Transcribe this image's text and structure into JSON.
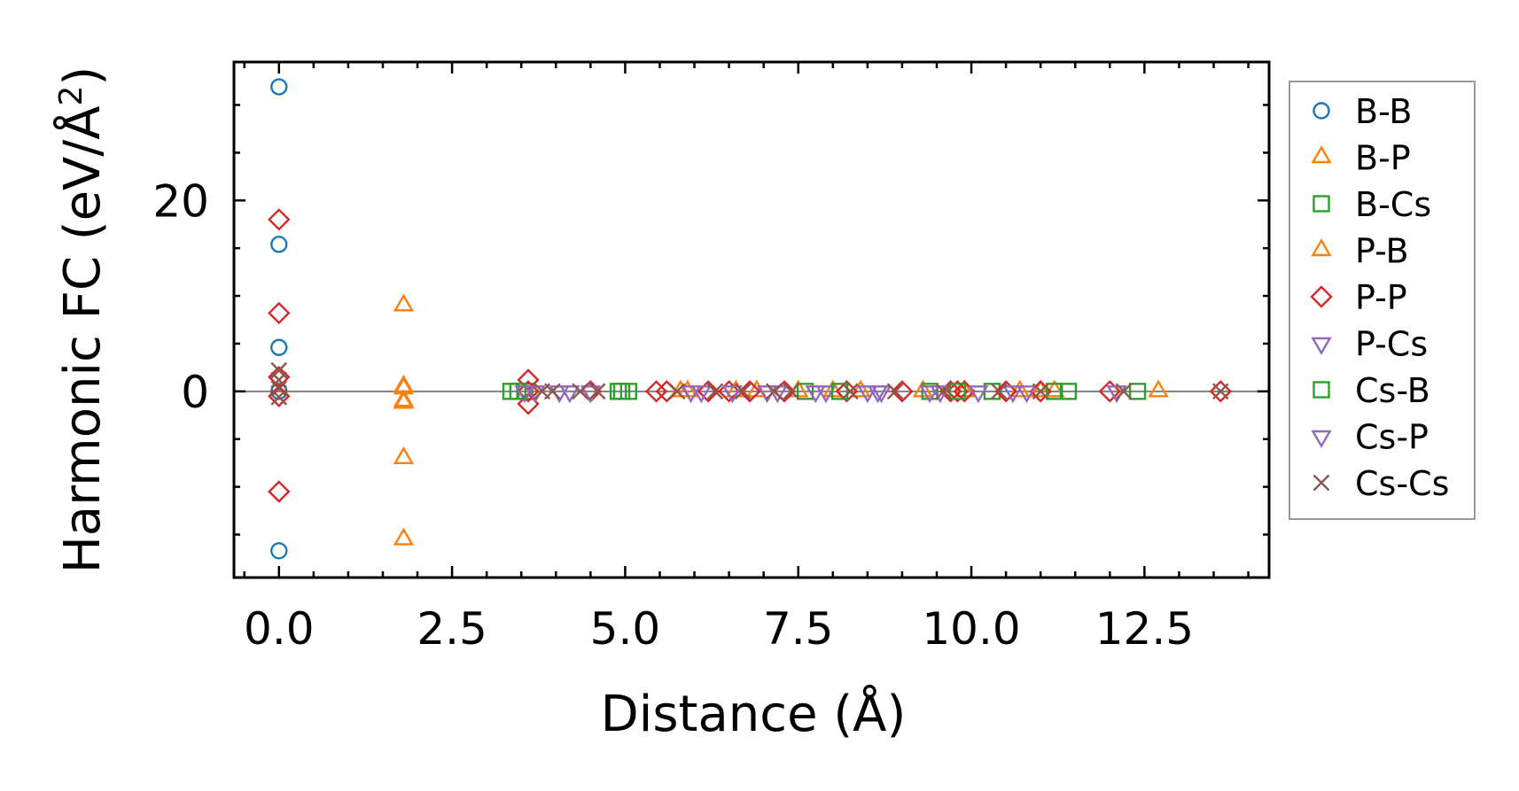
{
  "chart_data": {
    "type": "scatter",
    "title": "",
    "xlabel": "Distance (Å)",
    "ylabel_main": "Harmonic FC (eV/Å",
    "ylabel_sup": "2",
    "ylabel_close": ")",
    "xlim": [
      -0.65,
      14.3
    ],
    "ylim": [
      -19.5,
      34.5
    ],
    "xticks": [
      0,
      2.5,
      5,
      7.5,
      10,
      12.5
    ],
    "xtick_labels": [
      "0.0",
      "2.5",
      "5.0",
      "7.5",
      "10.0",
      "12.5"
    ],
    "yticks": [
      0,
      20
    ],
    "ytick_labels": [
      "0",
      "20"
    ],
    "legend_position": "right-outside",
    "zero_line": true,
    "series": [
      {
        "name": "B-B",
        "marker": "circle",
        "color": "#1f77b4",
        "x": [
          0,
          0,
          0,
          0,
          0
        ],
        "y": [
          31.9,
          15.4,
          4.6,
          0,
          -16.7
        ]
      },
      {
        "name": "B-P",
        "marker": "triangle-up",
        "color": "#ff7f0e",
        "x": [
          1.8,
          1.8,
          1.8,
          1.8,
          1.8,
          5.9,
          6.6,
          7.5,
          8.4,
          9.3,
          10.7,
          11.2,
          12.7
        ],
        "y": [
          9.0,
          0.3,
          -1.2,
          -7.0,
          -15.5,
          0,
          0,
          0,
          0,
          0,
          0,
          0,
          0
        ]
      },
      {
        "name": "B-Cs",
        "marker": "square",
        "color": "#2ca02c",
        "x": [
          3.35,
          3.55,
          4.95,
          5.05,
          7.6,
          9.4,
          10.3,
          11.4,
          12.4
        ],
        "y": [
          0,
          0,
          0,
          0,
          0,
          0,
          0,
          0,
          0
        ]
      },
      {
        "name": "P-B",
        "marker": "triangle-up",
        "color": "#ff7f0e",
        "x": [
          1.8,
          1.8,
          5.8,
          6.9,
          8.0,
          9.9,
          11.0
        ],
        "y": [
          0.5,
          -1.0,
          0,
          0,
          0,
          0,
          0
        ]
      },
      {
        "name": "P-P",
        "marker": "diamond",
        "color": "#d62728",
        "x": [
          0,
          0,
          0,
          0,
          0,
          3.6,
          3.6,
          3.6,
          4.5,
          5.45,
          5.6,
          6.2,
          6.5,
          6.8,
          7.3,
          8.2,
          9.0,
          9.7,
          9.8,
          9.9,
          10.5,
          11.0,
          12.0,
          13.6
        ],
        "y": [
          18.0,
          8.2,
          1.5,
          -0.5,
          -10.5,
          1.2,
          0,
          -1.3,
          0,
          0,
          0,
          0,
          0,
          0,
          0,
          0,
          0,
          0,
          0,
          0,
          0,
          0,
          0,
          0
        ]
      },
      {
        "name": "P-Cs",
        "marker": "triangle-down",
        "color": "#9467bd",
        "x": [
          3.55,
          4.05,
          4.5,
          6.1,
          6.55,
          7.2,
          7.9,
          8.5,
          8.7,
          9.4,
          10.1,
          10.8,
          12.1
        ],
        "y": [
          0,
          0,
          0,
          0,
          0,
          0,
          0,
          0,
          0,
          0,
          0,
          0,
          0
        ]
      },
      {
        "name": "Cs-B",
        "marker": "square",
        "color": "#2ca02c",
        "x": [
          3.45,
          4.9,
          8.1,
          9.8,
          11.2
        ],
        "y": [
          0,
          0,
          0,
          0,
          0
        ]
      },
      {
        "name": "Cs-P",
        "marker": "triangle-down",
        "color": "#9467bd",
        "x": [
          3.7,
          4.2,
          5.95,
          7.05,
          7.75,
          8.65,
          9.55,
          10.6
        ],
        "y": [
          0,
          0,
          0,
          0,
          0,
          0,
          0,
          0
        ]
      },
      {
        "name": "Cs-Cs",
        "marker": "x",
        "color": "#8c564b",
        "x": [
          0,
          0,
          0,
          0,
          3.8,
          3.95,
          4.35,
          4.6,
          5.75,
          6.3,
          6.7,
          7.15,
          7.4,
          8.25,
          8.9,
          9.6,
          10.4,
          11.0,
          12.2,
          13.6
        ],
        "y": [
          2.2,
          1.2,
          0.3,
          -0.6,
          0,
          0,
          0,
          0,
          0,
          0,
          0,
          0,
          0,
          0,
          0,
          0,
          0,
          0,
          0,
          0
        ]
      }
    ]
  }
}
